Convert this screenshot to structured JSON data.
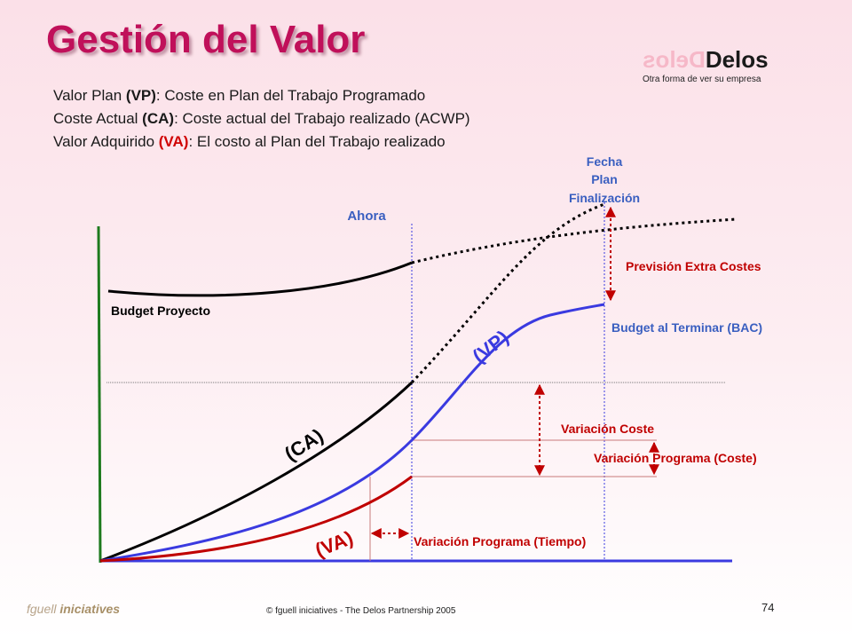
{
  "slide": {
    "title": "Gestión del Valor",
    "logo": {
      "mirror_text": "Delos",
      "main_text": "Delos",
      "tagline": "Otra forma de ver su empresa"
    },
    "definitions": [
      {
        "a": "Valor Plan ",
        "b": "(VP)",
        "c": ": Coste en Plan del Trabajo Programado"
      },
      {
        "a": "Coste Actual ",
        "b": "(CA)",
        "c": ": Coste actual del Trabajo realizado (ACWP)"
      },
      {
        "a": "Valor Adquirido ",
        "b": "(VA)",
        "c": ": El costo al Plan del Trabajo realizado"
      }
    ],
    "footer": {
      "brand_a": "fguell ",
      "brand_b": "iniciatives",
      "copyright": "© fguell iniciatives - The Delos Partnership 2005",
      "page": "74"
    }
  },
  "diagram_labels": {
    "ahora": "Ahora",
    "fecha_line1": "Fecha",
    "fecha_line2": "Plan",
    "fecha_line3": "Finalización",
    "budget_proyecto": "Budget Proyecto",
    "prevision": "Previsión Extra Costes",
    "bac": "Budget al Terminar (BAC)",
    "var_coste": "Variación Coste",
    "var_prog_coste": "Variación Programa (Coste)",
    "var_prog_tiempo": "Variación Programa (Tiempo)",
    "curve_vp": "(VP)",
    "curve_ca": "(CA)",
    "curve_va": "(VA)"
  },
  "colors": {
    "title": "#c0105a",
    "vp": "#3a3ae0",
    "ca": "#000000",
    "va": "#c00000",
    "labels": "#c00000",
    "ahora": "#3a5fc0",
    "axis_y": "#1e7a1e",
    "axis_x": "#3a3ae0"
  }
}
